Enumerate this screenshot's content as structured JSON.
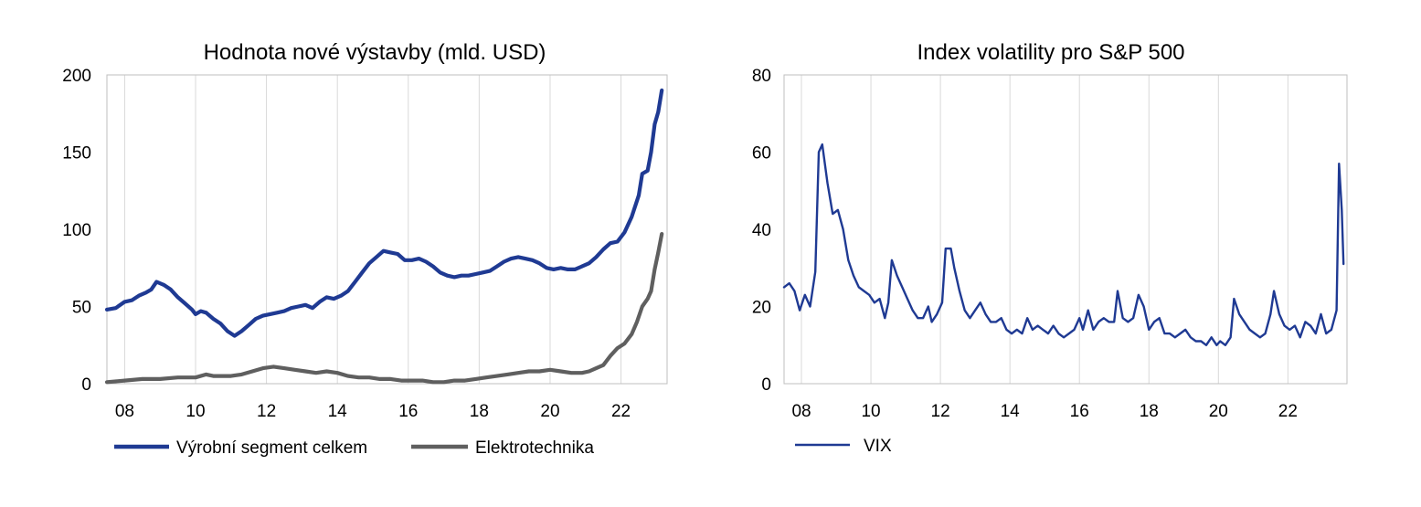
{
  "chart_data": [
    {
      "type": "line",
      "title": "Hodnota nové výstavby (mld. USD)",
      "xlabel": "",
      "ylabel": "",
      "xlim": [
        2007.5,
        2023.5
      ],
      "ylim": [
        0,
        200
      ],
      "yticks": [
        "0",
        "50",
        "100",
        "150",
        "200"
      ],
      "xticks": [
        {
          "value": 2008,
          "label": "08"
        },
        {
          "value": 2010,
          "label": "10"
        },
        {
          "value": 2012,
          "label": "12"
        },
        {
          "value": 2014,
          "label": "14"
        },
        {
          "value": 2016,
          "label": "16"
        },
        {
          "value": 2018,
          "label": "18"
        },
        {
          "value": 2020,
          "label": "20"
        },
        {
          "value": 2022,
          "label": "22"
        }
      ],
      "grid": "vertical",
      "legend": "bottom",
      "series": [
        {
          "name": "Výrobní segment celkem",
          "color": "#1f3a93",
          "points": [
            [
              2007.5,
              48
            ],
            [
              2007.75,
              49
            ],
            [
              2008.0,
              53
            ],
            [
              2008.2,
              54
            ],
            [
              2008.4,
              57
            ],
            [
              2008.6,
              59
            ],
            [
              2008.75,
              61
            ],
            [
              2008.9,
              66
            ],
            [
              2009.1,
              64
            ],
            [
              2009.3,
              61
            ],
            [
              2009.5,
              56
            ],
            [
              2009.7,
              52
            ],
            [
              2009.9,
              48
            ],
            [
              2010.0,
              45
            ],
            [
              2010.15,
              47
            ],
            [
              2010.3,
              46
            ],
            [
              2010.5,
              42
            ],
            [
              2010.7,
              39
            ],
            [
              2010.9,
              34
            ],
            [
              2011.1,
              31
            ],
            [
              2011.3,
              34
            ],
            [
              2011.5,
              38
            ],
            [
              2011.7,
              42
            ],
            [
              2011.9,
              44
            ],
            [
              2012.1,
              45
            ],
            [
              2012.3,
              46
            ],
            [
              2012.5,
              47
            ],
            [
              2012.7,
              49
            ],
            [
              2012.9,
              50
            ],
            [
              2013.1,
              51
            ],
            [
              2013.3,
              49
            ],
            [
              2013.5,
              53
            ],
            [
              2013.7,
              56
            ],
            [
              2013.9,
              55
            ],
            [
              2014.1,
              57
            ],
            [
              2014.3,
              60
            ],
            [
              2014.5,
              66
            ],
            [
              2014.7,
              72
            ],
            [
              2014.9,
              78
            ],
            [
              2015.1,
              82
            ],
            [
              2015.3,
              86
            ],
            [
              2015.5,
              85
            ],
            [
              2015.7,
              84
            ],
            [
              2015.9,
              80
            ],
            [
              2016.1,
              80
            ],
            [
              2016.3,
              81
            ],
            [
              2016.5,
              79
            ],
            [
              2016.7,
              76
            ],
            [
              2016.9,
              72
            ],
            [
              2017.1,
              70
            ],
            [
              2017.3,
              69
            ],
            [
              2017.5,
              70
            ],
            [
              2017.7,
              70
            ],
            [
              2017.9,
              71
            ],
            [
              2018.1,
              72
            ],
            [
              2018.3,
              73
            ],
            [
              2018.5,
              76
            ],
            [
              2018.7,
              79
            ],
            [
              2018.9,
              81
            ],
            [
              2019.1,
              82
            ],
            [
              2019.3,
              81
            ],
            [
              2019.5,
              80
            ],
            [
              2019.7,
              78
            ],
            [
              2019.9,
              75
            ],
            [
              2020.1,
              74
            ],
            [
              2020.3,
              75
            ],
            [
              2020.5,
              74
            ],
            [
              2020.7,
              74
            ],
            [
              2020.9,
              76
            ],
            [
              2021.1,
              78
            ],
            [
              2021.3,
              82
            ],
            [
              2021.5,
              87
            ],
            [
              2021.7,
              91
            ],
            [
              2021.9,
              92
            ],
            [
              2022.1,
              98
            ],
            [
              2022.3,
              108
            ],
            [
              2022.5,
              122
            ],
            [
              2022.6,
              136
            ],
            [
              2022.75,
              138
            ],
            [
              2022.85,
              150
            ],
            [
              2022.95,
              168
            ],
            [
              2023.05,
              176
            ],
            [
              2023.15,
              190
            ]
          ]
        },
        {
          "name": "Elektrotechnika",
          "color": "#5f5f5f",
          "points": [
            [
              2007.5,
              1
            ],
            [
              2008.0,
              2
            ],
            [
              2008.5,
              3
            ],
            [
              2009.0,
              3
            ],
            [
              2009.5,
              4
            ],
            [
              2010.0,
              4
            ],
            [
              2010.3,
              6
            ],
            [
              2010.5,
              5
            ],
            [
              2011.0,
              5
            ],
            [
              2011.3,
              6
            ],
            [
              2011.6,
              8
            ],
            [
              2011.9,
              10
            ],
            [
              2012.2,
              11
            ],
            [
              2012.5,
              10
            ],
            [
              2012.8,
              9
            ],
            [
              2013.1,
              8
            ],
            [
              2013.4,
              7
            ],
            [
              2013.7,
              8
            ],
            [
              2014.0,
              7
            ],
            [
              2014.3,
              5
            ],
            [
              2014.6,
              4
            ],
            [
              2014.9,
              4
            ],
            [
              2015.2,
              3
            ],
            [
              2015.5,
              3
            ],
            [
              2015.8,
              2
            ],
            [
              2016.1,
              2
            ],
            [
              2016.4,
              2
            ],
            [
              2016.7,
              1
            ],
            [
              2017.0,
              1
            ],
            [
              2017.3,
              2
            ],
            [
              2017.6,
              2
            ],
            [
              2017.9,
              3
            ],
            [
              2018.2,
              4
            ],
            [
              2018.5,
              5
            ],
            [
              2018.8,
              6
            ],
            [
              2019.1,
              7
            ],
            [
              2019.4,
              8
            ],
            [
              2019.7,
              8
            ],
            [
              2020.0,
              9
            ],
            [
              2020.3,
              8
            ],
            [
              2020.6,
              7
            ],
            [
              2020.9,
              7
            ],
            [
              2021.1,
              8
            ],
            [
              2021.3,
              10
            ],
            [
              2021.5,
              12
            ],
            [
              2021.7,
              18
            ],
            [
              2021.9,
              23
            ],
            [
              2022.1,
              26
            ],
            [
              2022.3,
              32
            ],
            [
              2022.45,
              40
            ],
            [
              2022.6,
              50
            ],
            [
              2022.75,
              55
            ],
            [
              2022.85,
              60
            ],
            [
              2022.95,
              74
            ],
            [
              2023.05,
              85
            ],
            [
              2023.15,
              97
            ]
          ]
        }
      ]
    },
    {
      "type": "line",
      "title": "Index volatility pro S&P 500",
      "xlabel": "",
      "ylabel": "",
      "xlim": [
        2007.5,
        2023.6
      ],
      "ylim": [
        0,
        80
      ],
      "yticks": [
        "0",
        "20",
        "40",
        "60",
        "80"
      ],
      "xticks": [
        {
          "value": 2008,
          "label": "08"
        },
        {
          "value": 2010,
          "label": "10"
        },
        {
          "value": 2012,
          "label": "12"
        },
        {
          "value": 2014,
          "label": "14"
        },
        {
          "value": 2016,
          "label": "16"
        },
        {
          "value": 2018,
          "label": "18"
        },
        {
          "value": 2020,
          "label": "20"
        },
        {
          "value": 2022,
          "label": "22"
        }
      ],
      "grid": "vertical",
      "legend": "bottom-left",
      "series": [
        {
          "name": "VIX",
          "color": "#1f3a93",
          "points": [
            [
              2007.5,
              25
            ],
            [
              2007.65,
              26
            ],
            [
              2007.8,
              24
            ],
            [
              2007.95,
              19
            ],
            [
              2008.1,
              23
            ],
            [
              2008.25,
              20
            ],
            [
              2008.4,
              29
            ],
            [
              2008.5,
              60
            ],
            [
              2008.6,
              62
            ],
            [
              2008.75,
              52
            ],
            [
              2008.9,
              44
            ],
            [
              2009.05,
              45
            ],
            [
              2009.2,
              40
            ],
            [
              2009.35,
              32
            ],
            [
              2009.5,
              28
            ],
            [
              2009.65,
              25
            ],
            [
              2009.8,
              24
            ],
            [
              2009.95,
              23
            ],
            [
              2010.1,
              21
            ],
            [
              2010.25,
              22
            ],
            [
              2010.4,
              17
            ],
            [
              2010.5,
              21
            ],
            [
              2010.6,
              32
            ],
            [
              2010.75,
              28
            ],
            [
              2010.9,
              25
            ],
            [
              2011.05,
              22
            ],
            [
              2011.2,
              19
            ],
            [
              2011.35,
              17
            ],
            [
              2011.5,
              17
            ],
            [
              2011.65,
              20
            ],
            [
              2011.75,
              16
            ],
            [
              2011.9,
              18
            ],
            [
              2012.05,
              21
            ],
            [
              2012.15,
              35
            ],
            [
              2012.3,
              35
            ],
            [
              2012.4,
              30
            ],
            [
              2012.55,
              24
            ],
            [
              2012.7,
              19
            ],
            [
              2012.85,
              17
            ],
            [
              2013.0,
              19
            ],
            [
              2013.15,
              21
            ],
            [
              2013.3,
              18
            ],
            [
              2013.45,
              16
            ],
            [
              2013.6,
              16
            ],
            [
              2013.75,
              17
            ],
            [
              2013.9,
              14
            ],
            [
              2014.05,
              13
            ],
            [
              2014.2,
              14
            ],
            [
              2014.35,
              13
            ],
            [
              2014.5,
              17
            ],
            [
              2014.65,
              14
            ],
            [
              2014.8,
              15
            ],
            [
              2014.95,
              14
            ],
            [
              2015.1,
              13
            ],
            [
              2015.25,
              15
            ],
            [
              2015.4,
              13
            ],
            [
              2015.55,
              12
            ],
            [
              2015.7,
              13
            ],
            [
              2015.85,
              14
            ],
            [
              2016.0,
              17
            ],
            [
              2016.1,
              14
            ],
            [
              2016.25,
              19
            ],
            [
              2016.4,
              14
            ],
            [
              2016.55,
              16
            ],
            [
              2016.7,
              17
            ],
            [
              2016.85,
              16
            ],
            [
              2017.0,
              16
            ],
            [
              2017.1,
              24
            ],
            [
              2017.25,
              17
            ],
            [
              2017.4,
              16
            ],
            [
              2017.55,
              17
            ],
            [
              2017.7,
              23
            ],
            [
              2017.85,
              20
            ],
            [
              2018.0,
              14
            ],
            [
              2018.15,
              16
            ],
            [
              2018.3,
              17
            ],
            [
              2018.45,
              13
            ],
            [
              2018.6,
              13
            ],
            [
              2018.75,
              12
            ],
            [
              2018.9,
              13
            ],
            [
              2019.05,
              14
            ],
            [
              2019.2,
              12
            ],
            [
              2019.35,
              11
            ],
            [
              2019.5,
              11
            ],
            [
              2019.65,
              10
            ],
            [
              2019.8,
              12
            ],
            [
              2019.95,
              10
            ],
            [
              2020.05,
              11
            ],
            [
              2020.2,
              10
            ],
            [
              2020.35,
              12
            ],
            [
              2020.45,
              22
            ],
            [
              2020.6,
              18
            ],
            [
              2020.75,
              16
            ],
            [
              2020.9,
              14
            ],
            [
              2021.05,
              13
            ],
            [
              2021.2,
              12
            ],
            [
              2021.35,
              13
            ],
            [
              2021.5,
              18
            ],
            [
              2021.6,
              24
            ],
            [
              2021.75,
              18
            ],
            [
              2021.9,
              15
            ],
            [
              2022.05,
              14
            ],
            [
              2022.2,
              15
            ],
            [
              2022.35,
              12
            ],
            [
              2022.5,
              16
            ],
            [
              2022.65,
              15
            ],
            [
              2022.8,
              13
            ],
            [
              2022.95,
              18
            ],
            [
              2023.1,
              13
            ],
            [
              2023.25,
              14
            ],
            [
              2023.4,
              19
            ],
            [
              2023.47,
              57
            ],
            [
              2023.55,
              45
            ],
            [
              2023.6,
              31
            ]
          ]
        }
      ]
    }
  ]
}
